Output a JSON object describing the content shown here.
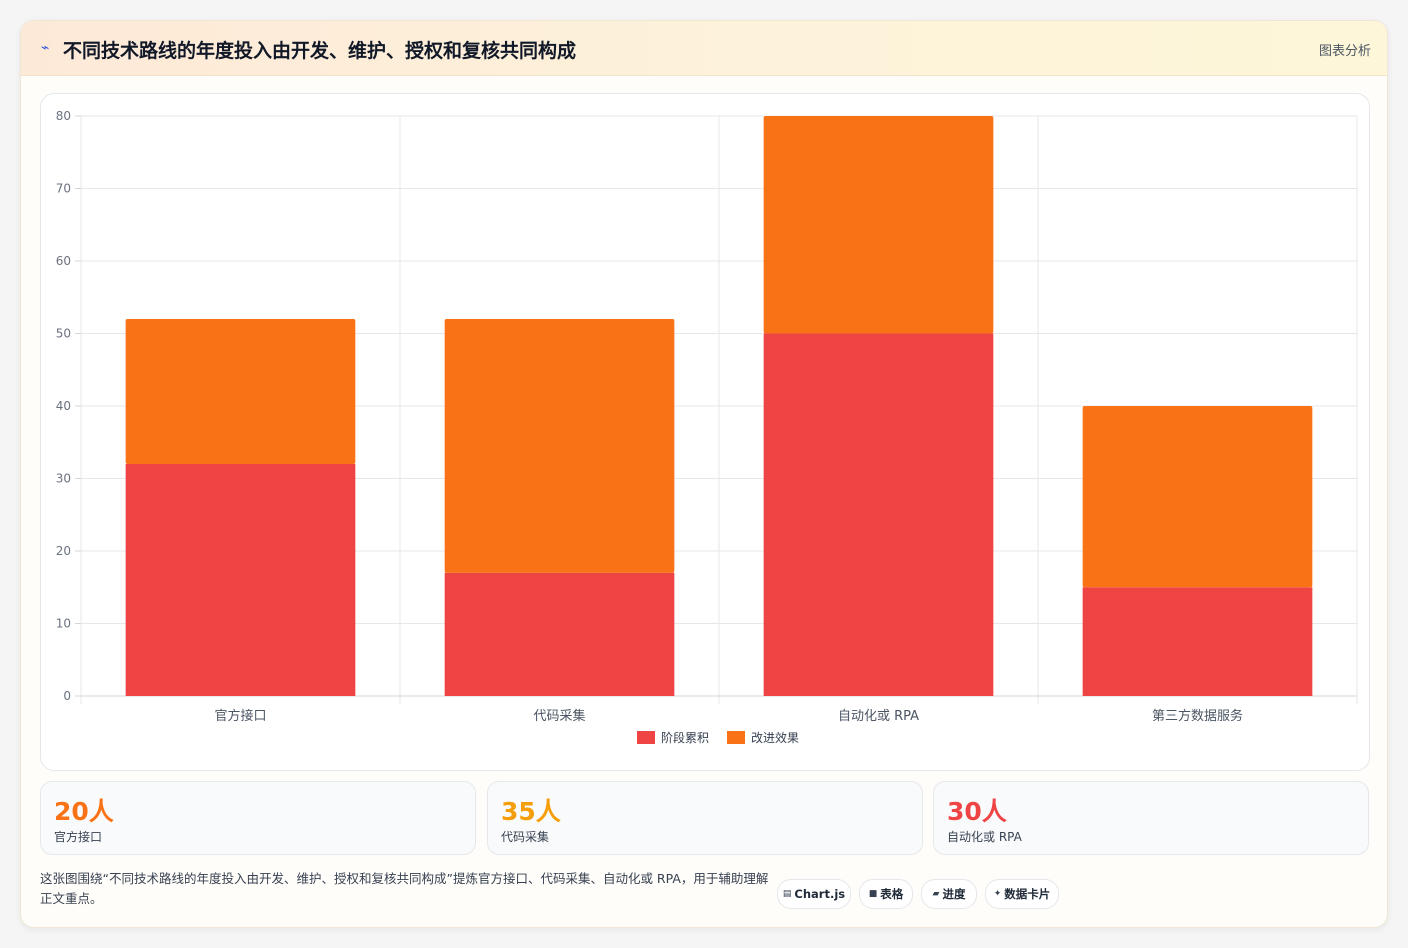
{
  "header": {
    "icon": "chart-spark-icon",
    "title": "不同技术路线的年度投入由开发、维护、授权和复核共同构成",
    "tag": "图表分析"
  },
  "chart_data": {
    "type": "bar",
    "stacked": true,
    "categories": [
      "官方接口",
      "代码采集",
      "自动化或 RPA",
      "第三方数据服务"
    ],
    "series": [
      {
        "name": "阶段累积",
        "color": "#ef4444",
        "values": [
          32,
          17,
          50,
          15
        ]
      },
      {
        "name": "改进效果",
        "color": "#f97316",
        "values": [
          20,
          35,
          30,
          25
        ]
      }
    ],
    "ylim": [
      0,
      80
    ],
    "yticks": [
      0,
      10,
      20,
      30,
      40,
      50,
      60,
      70,
      80
    ],
    "grid": true,
    "legend": "bottom"
  },
  "stats": [
    {
      "value": "20人",
      "label": "官方接口",
      "color": "#f97316"
    },
    {
      "value": "35人",
      "label": "代码采集",
      "color": "#f59e0b"
    },
    {
      "value": "30人",
      "label": "自动化或 RPA",
      "color": "#ef4444"
    }
  ],
  "description": "这张图围绕“不同技术路线的年度投入由开发、维护、授权和复核共同构成”提炼官方接口、代码采集、自动化或 RPA，用于辅助理解正文重点。",
  "chips": [
    {
      "icon": "chart-icon",
      "label": "Chart.js"
    },
    {
      "icon": "table-icon",
      "label": "表格"
    },
    {
      "icon": "progress-icon",
      "label": "进度"
    },
    {
      "icon": "card-icon",
      "label": "数据卡片"
    }
  ]
}
